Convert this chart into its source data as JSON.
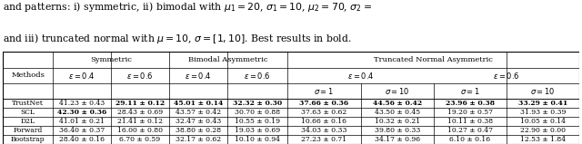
{
  "title_line1": "and patterns: i) symmetric, ii) bimodal with $\\mu_1 = 20$, $\\sigma_1 = 10$, $\\mu_2 = 70$, $\\sigma_2 =$",
  "title_line2": "and iii) truncated normal with $\\mu = 10$, $\\sigma = [1, 10]$. Best results in bold.",
  "rows": [
    {
      "method": "TrustNet",
      "values": [
        "41.23 ± 0.43",
        "29.11 ± 0.12",
        "45.01 ± 0.14",
        "32.32 ± 0.30",
        "37.66 ± 0.36",
        "44.56 ± 0.42",
        "23.96 ± 0.38",
        "33.29 ± 0.41"
      ],
      "bold": [
        false,
        true,
        true,
        true,
        true,
        true,
        true,
        true
      ]
    },
    {
      "method": "SCL",
      "values": [
        "42.30 ± 0.36",
        "28.43 ± 0.69",
        "43.57 ± 0.42",
        "30.70 ± 0.88",
        "37.63 ± 0.62",
        "43.50 ± 0.45",
        "19.20 ± 0.57",
        "31.93 ± 0.39"
      ],
      "bold": [
        true,
        false,
        false,
        false,
        false,
        false,
        false,
        false
      ]
    },
    {
      "method": "D2L",
      "values": [
        "41.01 ± 0.21",
        "21.41 ± 0.12",
        "32.47 ± 0.43",
        "10.55 ± 0.19",
        "10.66 ± 0.16",
        "10.32 ± 0.21",
        "10.11 ± 0.38",
        "10.05 ± 0.14"
      ],
      "bold": [
        false,
        false,
        false,
        false,
        false,
        false,
        false,
        false
      ]
    },
    {
      "method": "Forward",
      "values": [
        "36.40 ± 0.37",
        "16.00 ± 0.80",
        "38.80 ± 0.28",
        "19.03 ± 0.69",
        "34.03 ± 0.33",
        "39.80 ± 0.33",
        "10.27 ± 0.47",
        "22.90 ± 0.00"
      ],
      "bold": [
        false,
        false,
        false,
        false,
        false,
        false,
        false,
        false
      ]
    },
    {
      "method": "Bootstrap",
      "values": [
        "28.40 ± 0.16",
        "6.70 ± 0.59",
        "32.17 ± 0.62",
        "10.10 ± 0.94",
        "27.23 ± 0.71",
        "34.17 ± 0.96",
        "6.10 ± 0.16",
        "12.53 ± 1.84"
      ],
      "bold": [
        false,
        false,
        false,
        false,
        false,
        false,
        false,
        false
      ]
    }
  ],
  "xb": [
    0.0,
    0.063,
    0.135,
    0.208,
    0.281,
    0.356,
    0.449,
    0.54,
    0.631,
    0.722
  ],
  "ytop": [
    1.0,
    0.83,
    0.66,
    0.495
  ],
  "fs_header": 6.0,
  "fs_data": 5.5,
  "fs_title": 7.8,
  "lw_thick": 0.8,
  "lw_thin": 0.5
}
